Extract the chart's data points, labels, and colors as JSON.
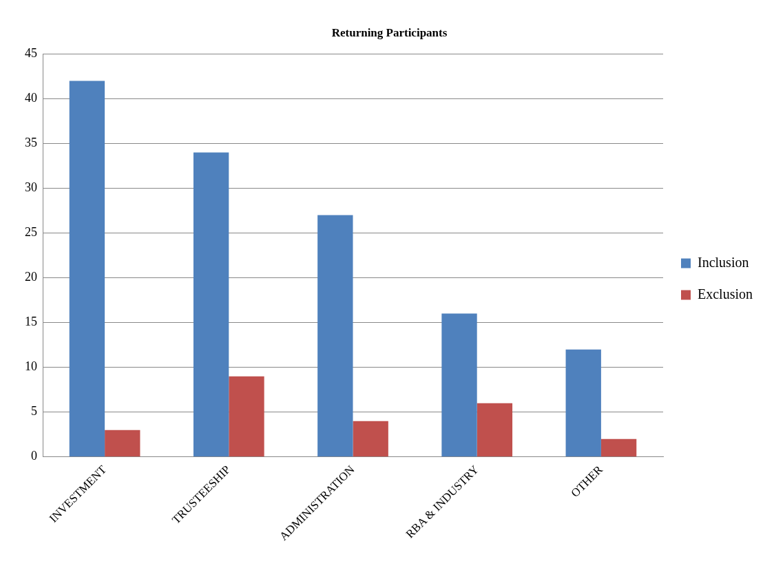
{
  "chart_data": {
    "type": "bar",
    "title": "Returning Participants",
    "categories": [
      "INVESTMENT",
      "TRUSTEESHIP",
      "ADMINISTRATION",
      "RBA & INDUSTRY",
      "OTHER"
    ],
    "series": [
      {
        "name": "Inclusion",
        "color": "#4f81bd",
        "values": [
          42,
          34,
          27,
          16,
          12
        ]
      },
      {
        "name": "Exclusion",
        "color": "#c0504d",
        "values": [
          3,
          9,
          4,
          6,
          2
        ]
      }
    ],
    "ylim": [
      0,
      45
    ],
    "yticks": [
      0,
      5,
      10,
      15,
      20,
      25,
      30,
      35,
      40,
      45
    ],
    "grid": "y",
    "legend": "right"
  }
}
